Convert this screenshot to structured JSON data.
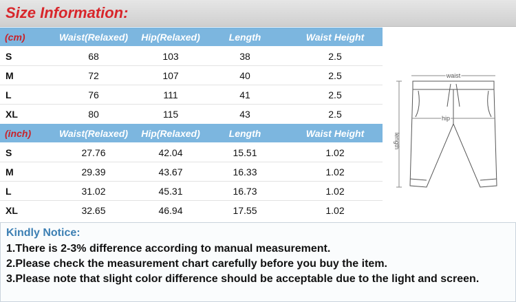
{
  "header": {
    "title": "Size Information:"
  },
  "tables": [
    {
      "unit": "(cm)",
      "columns": [
        "Waist(Relaxed)",
        "Hip(Relaxed)",
        "Length",
        "Waist Height"
      ],
      "rows": [
        [
          "S",
          "68",
          "103",
          "38",
          "2.5"
        ],
        [
          "M",
          "72",
          "107",
          "40",
          "2.5"
        ],
        [
          "L",
          "76",
          "111",
          "41",
          "2.5"
        ],
        [
          "XL",
          "80",
          "115",
          "43",
          "2.5"
        ]
      ]
    },
    {
      "unit": "(inch)",
      "columns": [
        "Waist(Relaxed)",
        "Hip(Relaxed)",
        "Length",
        "Waist Height"
      ],
      "rows": [
        [
          "S",
          "27.76",
          "42.04",
          "15.51",
          "1.02"
        ],
        [
          "M",
          "29.39",
          "43.67",
          "16.33",
          "1.02"
        ],
        [
          "L",
          "31.02",
          "45.31",
          "16.73",
          "1.02"
        ],
        [
          "XL",
          "32.65",
          "46.94",
          "17.55",
          "1.02"
        ]
      ]
    }
  ],
  "diagram": {
    "waist": "waist",
    "hip": "hip",
    "length": "length"
  },
  "notice": {
    "title": "Kindly Notice:",
    "items": [
      "1.There is 2-3% difference according to manual measurement.",
      "2.Please check the measurement chart carefully before you buy the item.",
      "3.Please note that slight color difference should be acceptable due to the light and screen."
    ]
  }
}
